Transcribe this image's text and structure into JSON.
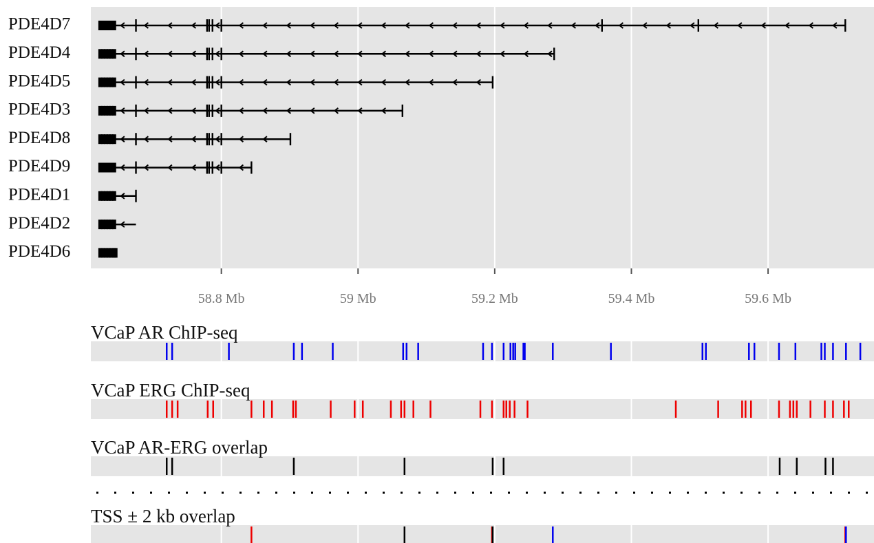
{
  "chart_data": {
    "type": "genome-tracks",
    "xlim": [
      58.609,
      59.755
    ],
    "xticks": [
      {
        "value": 58.8,
        "label": "58.8 Mb"
      },
      {
        "value": 59.0,
        "label": "59 Mb"
      },
      {
        "value": 59.2,
        "label": "59.2 Mb"
      },
      {
        "value": 59.4,
        "label": "59.4 Mb"
      },
      {
        "value": 59.6,
        "label": "59.6 Mb"
      }
    ],
    "grid": true,
    "strand": "-",
    "transcripts": [
      {
        "name": "PDE4D7",
        "start": 58.623,
        "end": 59.713,
        "exons": [
          58.623,
          58.627,
          58.631,
          58.635,
          58.639,
          58.643,
          58.675,
          58.779,
          58.782,
          58.787,
          58.8,
          59.357,
          59.498,
          59.713
        ]
      },
      {
        "name": "PDE4D4",
        "start": 58.623,
        "end": 59.287,
        "exons": [
          58.623,
          58.627,
          58.631,
          58.635,
          58.639,
          58.643,
          58.675,
          58.779,
          58.782,
          58.787,
          58.8,
          59.287
        ]
      },
      {
        "name": "PDE4D5",
        "start": 58.623,
        "end": 59.197,
        "exons": [
          58.623,
          58.627,
          58.631,
          58.635,
          58.639,
          58.643,
          58.675,
          58.779,
          58.782,
          58.787,
          58.8,
          59.197
        ]
      },
      {
        "name": "PDE4D3",
        "start": 58.623,
        "end": 59.065,
        "exons": [
          58.623,
          58.627,
          58.631,
          58.635,
          58.639,
          58.643,
          58.675,
          58.779,
          58.782,
          58.787,
          58.8,
          59.065
        ]
      },
      {
        "name": "PDE4D8",
        "start": 58.623,
        "end": 58.901,
        "exons": [
          58.623,
          58.627,
          58.631,
          58.635,
          58.639,
          58.643,
          58.675,
          58.779,
          58.782,
          58.787,
          58.8,
          58.901
        ]
      },
      {
        "name": "PDE4D9",
        "start": 58.623,
        "end": 58.844,
        "exons": [
          58.623,
          58.627,
          58.631,
          58.635,
          58.639,
          58.643,
          58.675,
          58.779,
          58.782,
          58.787,
          58.8,
          58.844
        ]
      },
      {
        "name": "PDE4D1",
        "start": 58.623,
        "end": 58.675,
        "exons": [
          58.623,
          58.627,
          58.631,
          58.635,
          58.639,
          58.643,
          58.675
        ]
      },
      {
        "name": "PDE4D2",
        "start": 58.623,
        "end": 58.675,
        "exons": [
          58.623,
          58.627,
          58.631,
          58.635,
          58.639,
          58.643
        ]
      },
      {
        "name": "PDE4D6",
        "start": 58.623,
        "end": 58.645,
        "exons": [
          58.623,
          58.627,
          58.631,
          58.635,
          58.639,
          58.643,
          58.645
        ]
      }
    ],
    "tracks": [
      {
        "title": "VCaP AR ChIP-seq",
        "color": "#0000ee",
        "peaks": [
          58.72,
          58.728,
          58.811,
          58.906,
          58.918,
          58.963,
          59.066,
          59.071,
          59.088,
          59.183,
          59.196,
          59.213,
          59.223,
          59.227,
          59.23,
          59.242,
          59.244,
          59.285,
          59.37,
          59.504,
          59.509,
          59.572,
          59.58,
          59.616,
          59.64,
          59.678,
          59.683,
          59.695,
          59.714,
          59.735
        ]
      },
      {
        "title": "VCaP ERG ChIP-seq",
        "color": "#ee0000",
        "peaks": [
          58.72,
          58.728,
          58.736,
          58.78,
          58.788,
          58.844,
          58.862,
          58.874,
          58.905,
          58.909,
          58.96,
          58.995,
          59.007,
          59.048,
          59.063,
          59.068,
          59.081,
          59.106,
          59.179,
          59.196,
          59.213,
          59.217,
          59.222,
          59.229,
          59.248,
          59.465,
          59.527,
          59.562,
          59.567,
          59.575,
          59.616,
          59.632,
          59.637,
          59.642,
          59.662,
          59.683,
          59.695,
          59.711,
          59.718
        ]
      },
      {
        "title": "VCaP AR-ERG overlap",
        "color": "#000000",
        "peaks": [
          58.72,
          58.728,
          58.906,
          59.068,
          59.197,
          59.213,
          59.617,
          59.642,
          59.684,
          59.695
        ]
      },
      {
        "title": "TSS ± 2 kb overlap",
        "peaks": [
          58.844,
          59.068,
          59.196,
          59.197,
          59.285,
          59.713,
          59.714
        ],
        "peak_colors": [
          "#ee0000",
          "#000000",
          "#ee0000",
          "#000000",
          "#0000ee",
          "#ee0000",
          "#0000ee"
        ]
      }
    ]
  }
}
